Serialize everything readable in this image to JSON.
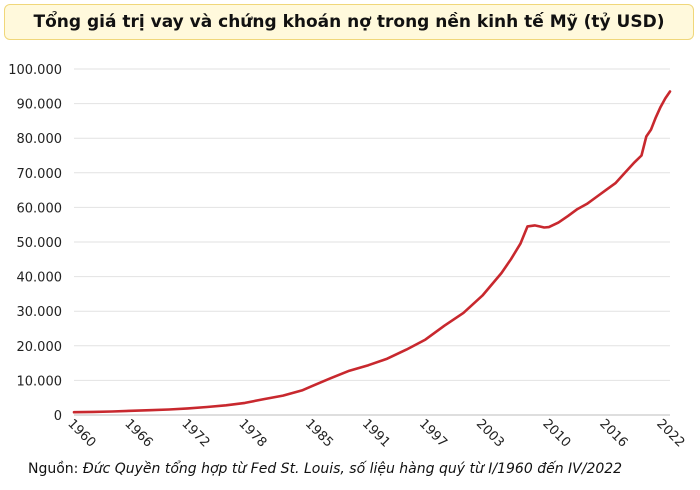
{
  "title": "Tổng giá trị vay và chứng khoán nợ trong nền kinh tế Mỹ (tỷ USD)",
  "source_label": "Nguồn:",
  "source_text": "Đức Quyền tổng hợp từ Fed St. Louis, số liệu hàng quý từ I/1960 đến IV/2022",
  "chart_data": {
    "type": "line",
    "title": "Tổng giá trị vay và chứng khoán nợ trong nền kinh tế Mỹ (tỷ USD)",
    "xlabel": "",
    "ylabel": "",
    "xlim": [
      1960,
      2022.75
    ],
    "ylim": [
      0,
      100000
    ],
    "grid": "horizontal",
    "legend": "none",
    "line_color": "#c8282e",
    "x_ticks": [
      "1960",
      "1966",
      "1972",
      "1978",
      "1985",
      "1991",
      "1997",
      "2003",
      "2010",
      "2016",
      "2022"
    ],
    "y_ticks": [
      "0",
      "10.000",
      "20.000",
      "30.000",
      "40.000",
      "50.000",
      "60.000",
      "70.000",
      "80.000",
      "90.000",
      "100.000"
    ],
    "series": [
      {
        "x": [
          1960,
          1962,
          1964,
          1966,
          1968,
          1970,
          1972,
          1974,
          1976,
          1978,
          1980,
          1982,
          1984,
          1985,
          1987,
          1989,
          1991,
          1993,
          1995,
          1997,
          1999,
          2001,
          2003,
          2005,
          2006,
          2007,
          2007.75,
          2008.5,
          2009,
          2009.5,
          2010,
          2011,
          2012,
          2013,
          2014,
          2015,
          2016,
          2017,
          2018,
          2019,
          2019.75,
          2020.25,
          2020.75,
          2021.25,
          2021.75,
          2022.25,
          2022.75
        ],
        "values": [
          800,
          900,
          1000,
          1200,
          1400,
          1600,
          1900,
          2300,
          2800,
          3500,
          4600,
          5600,
          7100,
          8300,
          10600,
          12800,
          14400,
          16300,
          18900,
          21800,
          25800,
          29500,
          34500,
          41000,
          45000,
          49500,
          54500,
          54800,
          54500,
          54200,
          54300,
          55600,
          57500,
          59500,
          61000,
          63000,
          65000,
          67000,
          70000,
          73000,
          75000,
          80500,
          82500,
          86000,
          89000,
          91500,
          93500
        ]
      }
    ]
  }
}
